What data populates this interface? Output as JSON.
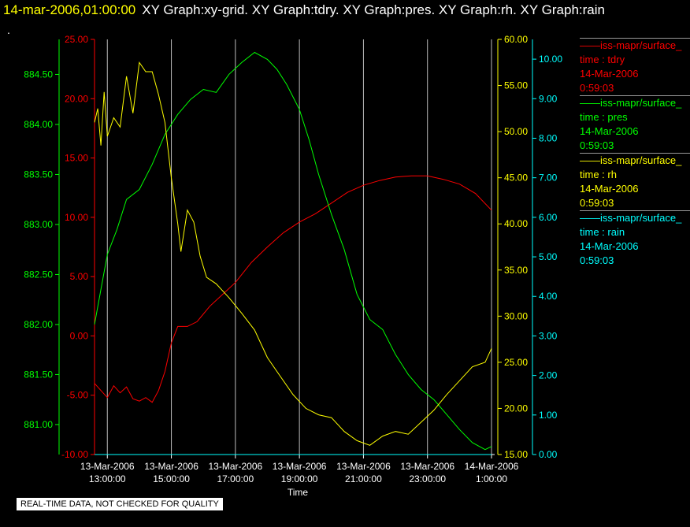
{
  "header": {
    "timestamp": "14-mar-2006,01:00:00",
    "titles": "XY Graph:xy-grid.  XY Graph:tdry.  XY Graph:pres.  XY Graph:rh.  XY Graph:rain"
  },
  "corner_mark": ".",
  "notice": "REAL-TIME DATA, NOT CHECKED FOR QUALITY",
  "colors": {
    "tdry": "#ff0000",
    "pres": "#00ff00",
    "rh": "#ffff00",
    "rain": "#00ffff",
    "grid": "#bbbbbb"
  },
  "legend": [
    {
      "name": "——iss-mapr/surface_",
      "var": "time : tdry",
      "date": "14-Mar-2006",
      "time": "0:59:03",
      "color": "#ff0000"
    },
    {
      "name": "——iss-mapr/surface_",
      "var": "time : pres",
      "date": "14-Mar-2006",
      "time": "0:59:03",
      "color": "#00ff00"
    },
    {
      "name": "——iss-mapr/surface_",
      "var": "time : rh",
      "date": "14-Mar-2006",
      "time": "0:59:03",
      "color": "#ffff00"
    },
    {
      "name": "——iss-mapr/surface_",
      "var": "time : rain",
      "date": "14-Mar-2006",
      "time": "0:59:03",
      "color": "#00ffff"
    }
  ],
  "chart_data": {
    "type": "line",
    "xlabel": "Time",
    "x_range_hours": [
      12.6,
      25.0
    ],
    "x_ticks": [
      {
        "h": 13,
        "line1": "13-Mar-2006",
        "line2": "13:00:00"
      },
      {
        "h": 15,
        "line1": "13-Mar-2006",
        "line2": "15:00:00"
      },
      {
        "h": 17,
        "line1": "13-Mar-2006",
        "line2": "17:00:00"
      },
      {
        "h": 19,
        "line1": "13-Mar-2006",
        "line2": "19:00:00"
      },
      {
        "h": 21,
        "line1": "13-Mar-2006",
        "line2": "21:00:00"
      },
      {
        "h": 23,
        "line1": "13-Mar-2006",
        "line2": "23:00:00"
      },
      {
        "h": 25,
        "line1": "14-Mar-2006",
        "line2": "1:00:00"
      }
    ],
    "axes": {
      "pres": {
        "range": [
          880.7,
          884.85
        ],
        "ticks": [
          "881.00",
          "881.50",
          "882.00",
          "882.50",
          "883.00",
          "883.50",
          "884.00",
          "884.50"
        ],
        "tick_values": [
          881.0,
          881.5,
          882.0,
          882.5,
          883.0,
          883.5,
          884.0,
          884.5
        ],
        "color": "#00ff00"
      },
      "tdry": {
        "range": [
          -10,
          25
        ],
        "ticks": [
          "-10.00",
          "-5.00",
          "0.00",
          "5.00",
          "10.00",
          "15.00",
          "20.00",
          "25.00"
        ],
        "tick_values": [
          -10,
          -5,
          0,
          5,
          10,
          15,
          20,
          25
        ],
        "color": "#ff0000"
      },
      "rh": {
        "range": [
          15,
          60
        ],
        "ticks": [
          "15.00",
          "20.00",
          "25.00",
          "30.00",
          "35.00",
          "40.00",
          "45.00",
          "50.00",
          "55.00",
          "60.00"
        ],
        "tick_values": [
          15,
          20,
          25,
          30,
          35,
          40,
          45,
          50,
          55,
          60
        ],
        "color": "#ffff00"
      },
      "rain": {
        "range": [
          0,
          10.5
        ],
        "ticks": [
          "0.00",
          "1.00",
          "2.00",
          "3.00",
          "4.00",
          "5.00",
          "6.00",
          "7.00",
          "8.00",
          "9.00",
          "10.00"
        ],
        "tick_values": [
          0,
          1,
          2,
          3,
          4,
          5,
          6,
          7,
          8,
          9,
          10
        ],
        "color": "#00ffff"
      }
    },
    "series": [
      {
        "name": "tdry",
        "color": "#ff0000",
        "x": [
          12.6,
          12.8,
          13.0,
          13.2,
          13.4,
          13.6,
          13.8,
          14.0,
          14.2,
          14.4,
          14.6,
          14.8,
          15.0,
          15.2,
          15.5,
          15.8,
          16.2,
          16.6,
          17.0,
          17.5,
          18.0,
          18.5,
          19.0,
          19.5,
          20.0,
          20.5,
          21.0,
          21.5,
          22.0,
          22.5,
          23.0,
          23.5,
          24.0,
          24.5,
          25.0
        ],
        "y": [
          -4.0,
          -4.6,
          -5.2,
          -4.2,
          -4.8,
          -4.3,
          -5.3,
          -5.5,
          -5.2,
          -5.6,
          -4.6,
          -3.0,
          -0.6,
          0.8,
          0.8,
          1.2,
          2.5,
          3.5,
          4.5,
          6.2,
          7.5,
          8.7,
          9.6,
          10.3,
          11.2,
          12.1,
          12.7,
          13.1,
          13.4,
          13.5,
          13.5,
          13.2,
          12.8,
          12.0,
          10.6
        ]
      },
      {
        "name": "pres",
        "color": "#00ff00",
        "x": [
          12.6,
          12.8,
          13.0,
          13.3,
          13.6,
          14.0,
          14.4,
          14.8,
          15.2,
          15.6,
          16.0,
          16.4,
          16.8,
          17.2,
          17.6,
          18.0,
          18.3,
          18.6,
          19.0,
          19.3,
          19.6,
          20.0,
          20.4,
          20.8,
          21.2,
          21.6,
          22.0,
          22.4,
          22.8,
          23.2,
          23.6,
          24.0,
          24.4,
          24.8,
          25.0
        ],
        "y": [
          882.0,
          882.35,
          882.7,
          882.95,
          883.25,
          883.35,
          883.6,
          883.9,
          884.1,
          884.25,
          884.35,
          884.32,
          884.5,
          884.62,
          884.72,
          884.65,
          884.55,
          884.4,
          884.15,
          883.85,
          883.5,
          883.1,
          882.75,
          882.3,
          882.05,
          881.95,
          881.7,
          881.5,
          881.35,
          881.25,
          881.1,
          880.95,
          880.82,
          880.75,
          880.78
        ]
      },
      {
        "name": "rh",
        "color": "#ffff00",
        "x": [
          12.6,
          12.7,
          12.8,
          12.9,
          13.0,
          13.2,
          13.4,
          13.6,
          13.8,
          14.0,
          14.2,
          14.4,
          14.6,
          14.8,
          15.0,
          15.2,
          15.3,
          15.5,
          15.7,
          15.9,
          16.1,
          16.4,
          16.8,
          17.2,
          17.6,
          18.0,
          18.4,
          18.8,
          19.2,
          19.6,
          20.0,
          20.4,
          20.8,
          21.2,
          21.6,
          22.0,
          22.4,
          22.8,
          23.2,
          23.6,
          24.0,
          24.4,
          24.8,
          25.0
        ],
        "y": [
          51,
          52.5,
          48.5,
          54.3,
          49.5,
          51.5,
          50.5,
          56.0,
          52.0,
          57.5,
          56.5,
          56.5,
          54.0,
          51.0,
          45.0,
          40.0,
          37.0,
          41.5,
          40.2,
          36.5,
          34.2,
          33.5,
          32.0,
          30.3,
          28.5,
          25.5,
          23.5,
          21.5,
          20.0,
          19.3,
          19.0,
          17.5,
          16.5,
          16.0,
          17.0,
          17.5,
          17.2,
          18.5,
          19.8,
          21.5,
          23.0,
          24.5,
          25.0,
          26.5
        ]
      },
      {
        "name": "rain",
        "color": "#00ffff",
        "x": [
          12.6,
          25.0
        ],
        "y": [
          0.0,
          0.0
        ]
      }
    ]
  }
}
